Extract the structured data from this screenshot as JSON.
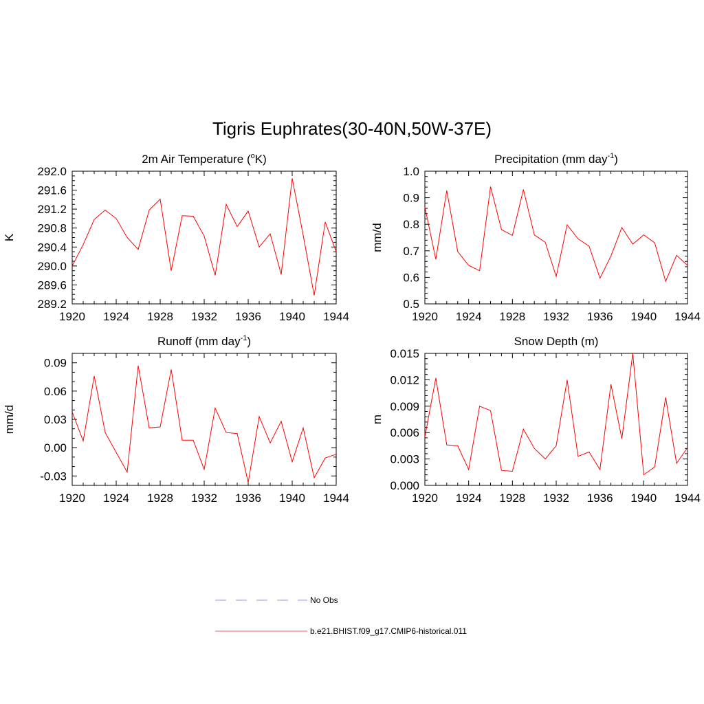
{
  "title": "Tigris Euphrates(30-40N,50W-37E)",
  "chart_data": [
    {
      "type": "line",
      "title": "2m Air Temperature (",
      "title_sup": "o",
      "title_after": "K)",
      "ylabel": "K",
      "xlim": [
        1920,
        1944
      ],
      "ylim": [
        289.2,
        292.0
      ],
      "xticks": [
        "1920",
        "1924",
        "1928",
        "1932",
        "1936",
        "1940",
        "1944"
      ],
      "yticks": [
        "289.2",
        "289.6",
        "290.0",
        "290.4",
        "290.8",
        "291.2",
        "291.6",
        "292.0"
      ],
      "x": [
        1920,
        1921,
        1922,
        1923,
        1924,
        1925,
        1926,
        1927,
        1928,
        1929,
        1930,
        1931,
        1932,
        1933,
        1934,
        1935,
        1936,
        1937,
        1938,
        1939,
        1940,
        1941,
        1942,
        1943,
        1944
      ],
      "series": [
        {
          "values": [
            290.0,
            290.45,
            290.98,
            291.18,
            291.0,
            290.6,
            290.35,
            291.18,
            291.41,
            289.9,
            291.06,
            291.05,
            290.63,
            289.8,
            291.3,
            290.83,
            291.16,
            290.4,
            290.68,
            289.82,
            291.85,
            290.65,
            289.38,
            290.93,
            290.3
          ]
        }
      ]
    },
    {
      "type": "line",
      "title": "Precipitation (mm day",
      "title_sup": "-1",
      "title_after": ")",
      "ylabel": "mm/d",
      "xlim": [
        1920,
        1944
      ],
      "ylim": [
        0.5,
        1.0
      ],
      "xticks": [
        "1920",
        "1924",
        "1928",
        "1932",
        "1936",
        "1940",
        "1944"
      ],
      "yticks": [
        "0.5",
        "0.6",
        "0.7",
        "0.8",
        "0.9",
        "1.0"
      ],
      "x": [
        1920,
        1921,
        1922,
        1923,
        1924,
        1925,
        1926,
        1927,
        1928,
        1929,
        1930,
        1931,
        1932,
        1933,
        1934,
        1935,
        1936,
        1937,
        1938,
        1939,
        1940,
        1941,
        1942,
        1943,
        1944
      ],
      "series": [
        {
          "values": [
            0.865,
            0.668,
            0.927,
            0.697,
            0.645,
            0.625,
            0.942,
            0.78,
            0.758,
            0.931,
            0.76,
            0.732,
            0.603,
            0.798,
            0.745,
            0.718,
            0.597,
            0.68,
            0.788,
            0.725,
            0.76,
            0.73,
            0.585,
            0.683,
            0.645
          ]
        }
      ]
    },
    {
      "type": "line",
      "title": "Runoff (mm day",
      "title_sup": "-1",
      "title_after": ")",
      "ylabel": "mm/d",
      "xlim": [
        1920,
        1944
      ],
      "ylim": [
        -0.04,
        0.1
      ],
      "xticks": [
        "1920",
        "1924",
        "1928",
        "1932",
        "1936",
        "1940",
        "1944"
      ],
      "yticks": [
        "-0.03",
        "0.00",
        "0.03",
        "0.06",
        "0.09"
      ],
      "x": [
        1920,
        1921,
        1922,
        1923,
        1924,
        1925,
        1926,
        1927,
        1928,
        1929,
        1930,
        1931,
        1932,
        1933,
        1934,
        1935,
        1936,
        1937,
        1938,
        1939,
        1940,
        1941,
        1942,
        1943,
        1944
      ],
      "series": [
        {
          "values": [
            0.038,
            0.007,
            0.076,
            0.016,
            -0.005,
            -0.026,
            0.087,
            0.021,
            0.022,
            0.083,
            0.008,
            0.008,
            -0.023,
            0.042,
            0.016,
            0.015,
            -0.037,
            0.033,
            0.005,
            0.028,
            -0.015,
            0.021,
            -0.032,
            -0.011,
            -0.007
          ]
        }
      ]
    },
    {
      "type": "line",
      "title": "Snow Depth (m)",
      "title_sup": "",
      "title_after": "",
      "ylabel": "m",
      "xlim": [
        1920,
        1944
      ],
      "ylim": [
        0.0,
        0.015
      ],
      "xticks": [
        "1920",
        "1924",
        "1928",
        "1932",
        "1936",
        "1940",
        "1944"
      ],
      "yticks": [
        "0.000",
        "0.003",
        "0.006",
        "0.009",
        "0.012",
        "0.015"
      ],
      "x": [
        1920,
        1921,
        1922,
        1923,
        1924,
        1925,
        1926,
        1927,
        1928,
        1929,
        1930,
        1931,
        1932,
        1933,
        1934,
        1935,
        1936,
        1937,
        1938,
        1939,
        1940,
        1941,
        1942,
        1943,
        1944
      ],
      "series": [
        {
          "values": [
            0.0055,
            0.0122,
            0.0046,
            0.0045,
            0.0018,
            0.009,
            0.0085,
            0.0017,
            0.0016,
            0.0064,
            0.0042,
            0.003,
            0.0045,
            0.012,
            0.0033,
            0.0038,
            0.0018,
            0.0115,
            0.0053,
            0.015,
            0.0012,
            0.0021,
            0.01,
            0.0025,
            0.0043
          ]
        }
      ]
    }
  ],
  "legend": [
    {
      "label": "No Obs",
      "color": "#aaaaee",
      "style": "dashed"
    },
    {
      "label": "b.e21.BHIST.f09_g17.CMIP6-historical.011",
      "color": "#ee8888",
      "style": "solid"
    }
  ],
  "colors": {
    "series": "#ff0000",
    "axis": "#000000"
  }
}
